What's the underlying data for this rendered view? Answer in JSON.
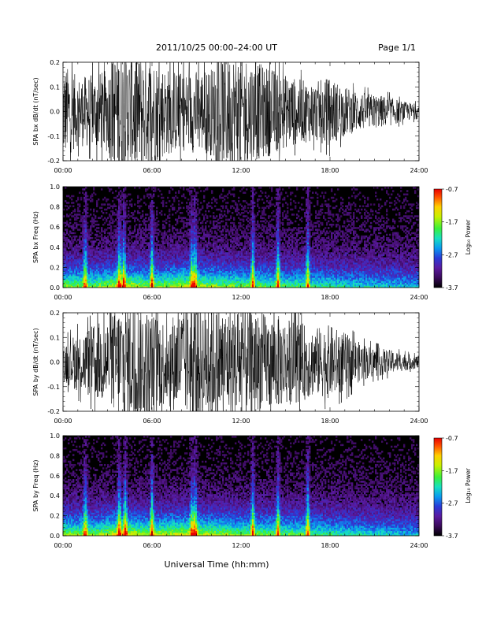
{
  "header": {
    "title": "2011/10/25  00:00–24:00 UT",
    "page": "Page 1/1"
  },
  "footer": {
    "xlabel": "Universal Time (hh:mm)"
  },
  "colors": {
    "trace": "#000000",
    "background": "#ffffff",
    "colormap": [
      "#000000",
      "#3a0a5a",
      "#5a1aa0",
      "#2a3ad8",
      "#0a9af0",
      "#18e0c0",
      "#3af03a",
      "#c8f000",
      "#ffd000",
      "#ff5000",
      "#e80000"
    ]
  },
  "chart_data": [
    {
      "type": "line",
      "ylabel": "SPA bx dB/dt (nT/sec)",
      "xlim": [
        "00:00",
        "24:00"
      ],
      "ylim": [
        -0.2,
        0.2
      ],
      "x_ticks": [
        "00:00",
        "06:00",
        "12:00",
        "18:00",
        "24:00"
      ],
      "y_ticks": [
        "-0.2",
        "-0.1",
        "0.0",
        "0.1",
        "0.2"
      ],
      "envelope": {
        "hours": [
          0,
          1,
          2,
          3,
          3.5,
          4,
          5,
          6,
          7,
          8,
          9,
          10,
          11,
          12,
          13,
          14,
          15,
          16,
          17,
          18,
          19,
          20,
          21,
          22,
          23,
          24
        ],
        "amplitude": [
          0.2,
          0.14,
          0.15,
          0.17,
          0.25,
          0.25,
          0.25,
          0.22,
          0.18,
          0.16,
          0.17,
          0.18,
          0.24,
          0.25,
          0.2,
          0.18,
          0.15,
          0.13,
          0.12,
          0.14,
          0.1,
          0.08,
          0.07,
          0.06,
          0.04,
          0.03
        ]
      }
    },
    {
      "type": "heatmap",
      "ylabel": "SPA bx Freq (Hz)",
      "xlim": [
        "00:00",
        "24:00"
      ],
      "ylim": [
        0.0,
        1.0
      ],
      "x_ticks": [
        "00:00",
        "06:00",
        "12:00",
        "18:00",
        "24:00"
      ],
      "y_ticks": [
        "0.0",
        "0.2",
        "0.4",
        "0.6",
        "0.8",
        "1.0"
      ],
      "colorbar": {
        "label": "Log₁₀ Power",
        "ticks": [
          "-0.7",
          "-1.7",
          "-2.7",
          "-3.7"
        ],
        "range": [
          -3.7,
          -0.7
        ]
      },
      "bursts_hours": [
        1.5,
        3.8,
        4.1,
        6.0,
        8.7,
        8.9,
        12.8,
        14.5,
        16.5
      ],
      "intensity_profile": {
        "hours": [
          0,
          2,
          4,
          6,
          8,
          10,
          12,
          14,
          16,
          18,
          20,
          22,
          24
        ],
        "level": [
          0.55,
          0.5,
          0.62,
          0.52,
          0.6,
          0.55,
          0.5,
          0.48,
          0.45,
          0.4,
          0.36,
          0.33,
          0.3
        ]
      }
    },
    {
      "type": "line",
      "ylabel": "SPA by dB/dt (nT/sec)",
      "xlim": [
        "00:00",
        "24:00"
      ],
      "ylim": [
        -0.2,
        0.2
      ],
      "x_ticks": [
        "00:00",
        "06:00",
        "12:00",
        "18:00",
        "24:00"
      ],
      "y_ticks": [
        "-0.2",
        "-0.1",
        "0.0",
        "0.1",
        "0.2"
      ],
      "envelope": {
        "hours": [
          0,
          1,
          2,
          3,
          4,
          5,
          6,
          7,
          8,
          9,
          10,
          11,
          12,
          13,
          14,
          15,
          16,
          17,
          18,
          19,
          20,
          21,
          22,
          23,
          24
        ],
        "amplitude": [
          0.08,
          0.12,
          0.15,
          0.18,
          0.25,
          0.25,
          0.2,
          0.18,
          0.22,
          0.25,
          0.25,
          0.22,
          0.25,
          0.2,
          0.2,
          0.18,
          0.16,
          0.14,
          0.15,
          0.12,
          0.08,
          0.06,
          0.05,
          0.035,
          0.025
        ]
      }
    },
    {
      "type": "heatmap",
      "ylabel": "SPA by Freq (Hz)",
      "xlim": [
        "00:00",
        "24:00"
      ],
      "ylim": [
        0.0,
        1.0
      ],
      "x_ticks": [
        "00:00",
        "06:00",
        "12:00",
        "18:00",
        "24:00"
      ],
      "y_ticks": [
        "0.0",
        "0.2",
        "0.4",
        "0.6",
        "0.8",
        "1.0"
      ],
      "colorbar": {
        "label": "Log₁₀ Power",
        "ticks": [
          "-0.7",
          "-1.7",
          "-2.7",
          "-3.7"
        ],
        "range": [
          -3.7,
          -0.7
        ]
      },
      "bursts_hours": [
        1.5,
        3.8,
        4.2,
        6.0,
        8.7,
        8.9,
        12.8,
        14.5,
        16.5
      ],
      "intensity_profile": {
        "hours": [
          0,
          2,
          4,
          6,
          8,
          10,
          12,
          14,
          16,
          18,
          20,
          22,
          24
        ],
        "level": [
          0.55,
          0.52,
          0.65,
          0.55,
          0.62,
          0.58,
          0.52,
          0.5,
          0.48,
          0.42,
          0.38,
          0.34,
          0.3
        ]
      }
    }
  ]
}
